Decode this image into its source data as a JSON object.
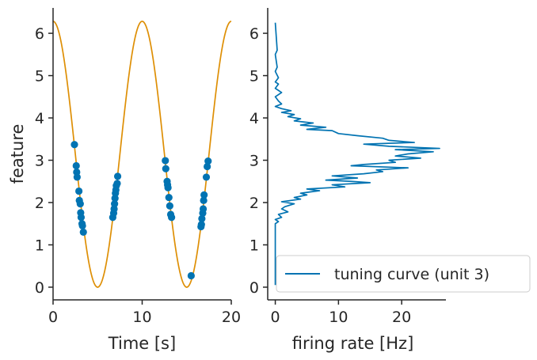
{
  "chart_data": [
    {
      "type": "line+scatter",
      "xlabel": "Time [s]",
      "ylabel": "feature",
      "xlim": [
        0,
        20
      ],
      "ylim": [
        -0.3,
        6.6
      ],
      "xticks": [
        "0",
        "10",
        "20"
      ],
      "yticks": [
        "0",
        "1",
        "2",
        "3",
        "4",
        "5",
        "6"
      ],
      "curve": {
        "function": "pi*(1+cos(2*pi*t/10))",
        "color": "#de8f05",
        "t_range": [
          0,
          20
        ]
      },
      "scatter": {
        "color": "#0173b2",
        "points": [
          [
            2.4,
            3.37
          ],
          [
            2.6,
            2.87
          ],
          [
            2.65,
            2.72
          ],
          [
            2.7,
            2.6
          ],
          [
            2.9,
            2.27
          ],
          [
            2.95,
            2.05
          ],
          [
            3.05,
            1.97
          ],
          [
            3.1,
            1.76
          ],
          [
            3.15,
            1.65
          ],
          [
            3.25,
            1.5
          ],
          [
            3.3,
            1.45
          ],
          [
            3.4,
            1.3
          ],
          [
            6.7,
            1.65
          ],
          [
            6.8,
            1.75
          ],
          [
            6.85,
            1.85
          ],
          [
            6.9,
            1.97
          ],
          [
            6.95,
            2.1
          ],
          [
            7.0,
            2.22
          ],
          [
            7.05,
            2.3
          ],
          [
            7.1,
            2.4
          ],
          [
            7.2,
            2.45
          ],
          [
            7.25,
            2.62
          ],
          [
            12.6,
            2.99
          ],
          [
            12.65,
            2.8
          ],
          [
            12.8,
            2.5
          ],
          [
            12.85,
            2.42
          ],
          [
            12.9,
            2.35
          ],
          [
            13.0,
            2.12
          ],
          [
            13.1,
            1.92
          ],
          [
            13.2,
            1.72
          ],
          [
            13.3,
            1.65
          ],
          [
            15.5,
            0.27
          ],
          [
            16.6,
            1.43
          ],
          [
            16.65,
            1.48
          ],
          [
            16.7,
            1.62
          ],
          [
            16.8,
            1.75
          ],
          [
            16.85,
            1.85
          ],
          [
            16.9,
            2.05
          ],
          [
            16.95,
            2.18
          ],
          [
            17.2,
            2.6
          ],
          [
            17.3,
            2.85
          ],
          [
            17.4,
            2.98
          ]
        ]
      }
    },
    {
      "type": "line",
      "xlabel": "firing rate [Hz]",
      "xlim": [
        -1.2,
        27
      ],
      "ylim": [
        -0.3,
        6.6
      ],
      "xticks": [
        "0",
        "10",
        "20"
      ],
      "yticks": [
        "0",
        "1",
        "2",
        "3",
        "4",
        "5",
        "6"
      ],
      "legend": {
        "label": "tuning curve (unit 3)",
        "placement": "lower-right"
      },
      "series": [
        {
          "color": "#0173b2",
          "feature": [
            0.05,
            1.5,
            1.55,
            1.6,
            1.65,
            1.72,
            1.78,
            1.85,
            1.9,
            1.97,
            2.02,
            2.08,
            2.12,
            2.18,
            2.22,
            2.28,
            2.32,
            2.37,
            2.42,
            2.47,
            2.5,
            2.53,
            2.58,
            2.63,
            2.68,
            2.73,
            2.77,
            2.82,
            2.87,
            2.9,
            2.95,
            3.0,
            3.05,
            3.1,
            3.15,
            3.2,
            3.25,
            3.28,
            3.33,
            3.38,
            3.42,
            3.47,
            3.52,
            3.58,
            3.63,
            3.7,
            3.73,
            3.78,
            3.83,
            3.88,
            3.93,
            3.98,
            4.03,
            4.08,
            4.13,
            4.17,
            4.22,
            4.27,
            4.33,
            4.4,
            4.5,
            4.6,
            4.7,
            4.8,
            4.85,
            4.95,
            5.1,
            5.2,
            5.5,
            5.6,
            6.25
          ],
          "rate": [
            0,
            0,
            0.5,
            0,
            1,
            0.5,
            2,
            1,
            1.5,
            3,
            1,
            4,
            3,
            5,
            4,
            7,
            5,
            11,
            9,
            15,
            12,
            8,
            13,
            9,
            14,
            17,
            16,
            21,
            12,
            14,
            19,
            18,
            23,
            19,
            21,
            25,
            19,
            26,
            18,
            14,
            22,
            18,
            17,
            13,
            10,
            9,
            5,
            8,
            4,
            6,
            3,
            4,
            2,
            3,
            1,
            2.5,
            1,
            0,
            1,
            0.5,
            0,
            1,
            0,
            0.5,
            0,
            0.5,
            0,
            0.3,
            0,
            0.3,
            0
          ]
        }
      ]
    }
  ]
}
